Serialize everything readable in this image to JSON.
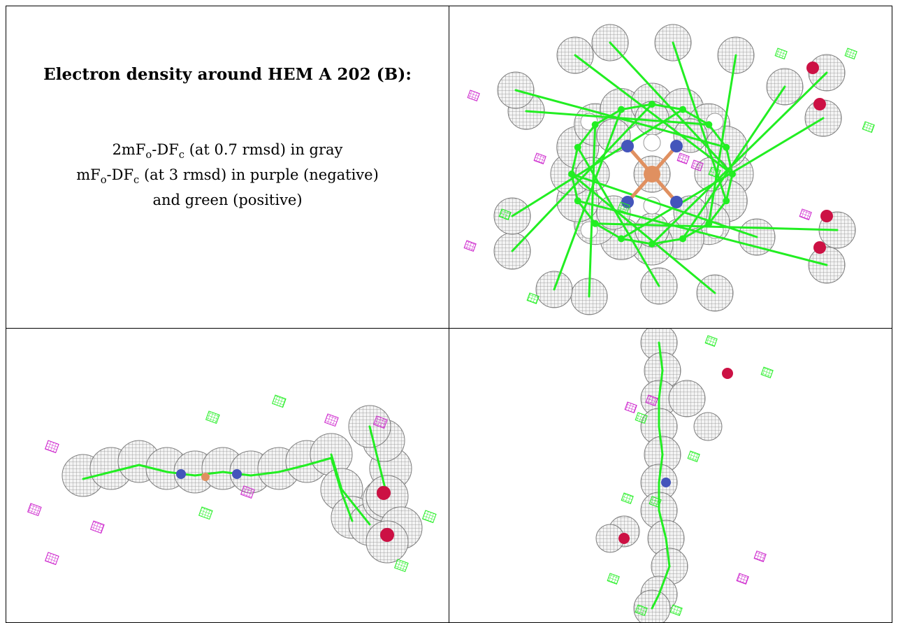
{
  "caption": {
    "title": "Electron density around HEM A 202 (B):",
    "lines": [
      {
        "pre": "2mF",
        "sub1": "o",
        "mid": "-DF",
        "sub2": "c",
        "post": " (at 0.7 rmsd) in gray"
      },
      {
        "pre": "mF",
        "sub1": "o",
        "mid": "-DF",
        "sub2": "c",
        "post": " (at 3 rmsd) in purple (negative)"
      },
      {
        "pre": "and green (positive)",
        "sub1": "",
        "mid": "",
        "sub2": "",
        "post": ""
      }
    ]
  },
  "panels": [
    {
      "id": "top-view",
      "description_shown": false
    },
    {
      "id": "side-view",
      "description_shown": false
    },
    {
      "id": "edge-view",
      "description_shown": false
    }
  ],
  "colors": {
    "map_2fofc": "#8a8a8a",
    "map_fofc_negative": "#cc22cc",
    "map_fofc_positive": "#22ee22",
    "nitrogen": "#4455bb",
    "oxygen": "#cc1144",
    "iron": "#e09060",
    "border": "#000000"
  }
}
